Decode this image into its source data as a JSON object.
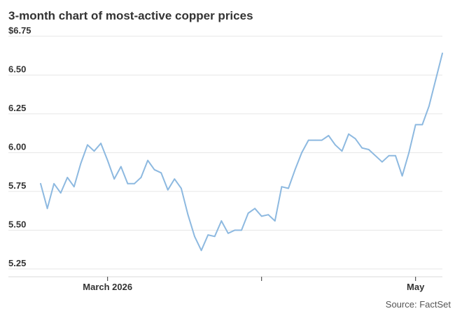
{
  "source": "Source: FactSet",
  "chart_data": {
    "type": "line",
    "title": "3-month chart of most-active copper prices",
    "xlabel": "",
    "ylabel": "",
    "ylim": [
      5.25,
      6.75
    ],
    "y_ticks": [
      "$6.75",
      "6.50",
      "6.25",
      "6.00",
      "5.75",
      "5.50",
      "5.25"
    ],
    "y_tick_values": [
      6.75,
      6.5,
      6.25,
      6.0,
      5.75,
      5.5,
      5.25
    ],
    "x_ticks": [
      {
        "label": "March 2026",
        "index": 10
      },
      {
        "label": "",
        "index": 33
      },
      {
        "label": "May",
        "index": 56
      }
    ],
    "grid": "horizontal",
    "color": "#8db9e0",
    "series": [
      {
        "values": [
          5.8,
          5.64,
          5.8,
          5.74,
          5.84,
          5.78,
          5.93,
          6.05,
          6.01,
          6.06,
          5.95,
          5.83,
          5.91,
          5.8,
          5.8,
          5.84,
          5.95,
          5.89,
          5.87,
          5.76,
          5.83,
          5.77,
          5.6,
          5.46,
          5.37,
          5.47,
          5.46,
          5.56,
          5.48,
          5.5,
          5.5,
          5.61,
          5.64,
          5.59,
          5.6,
          5.56,
          5.78,
          5.77,
          5.89,
          6.0,
          6.08,
          6.08,
          6.08,
          6.11,
          6.05,
          6.01,
          6.12,
          6.09,
          6.03,
          6.02,
          5.98,
          5.94,
          5.98,
          5.98,
          5.85,
          6.0,
          6.18,
          6.18,
          6.3,
          6.47,
          6.64
        ]
      }
    ]
  }
}
